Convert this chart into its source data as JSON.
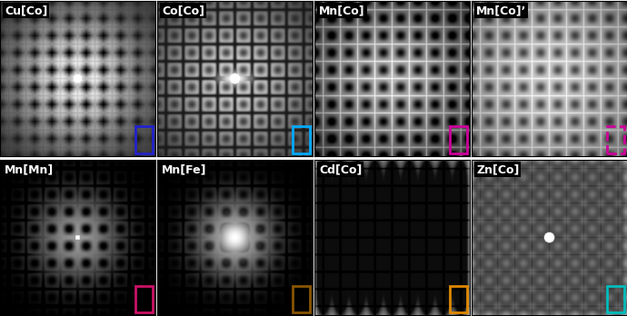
{
  "panels": [
    {
      "label": "Cu[Co]",
      "row": 0,
      "col": 0,
      "pattern": "cu_co"
    },
    {
      "label": "Co[Co]",
      "row": 0,
      "col": 1,
      "pattern": "co_co"
    },
    {
      "label": "Mn[Co]",
      "row": 0,
      "col": 2,
      "pattern": "mn_co"
    },
    {
      "label": "Mn[Co]’",
      "row": 0,
      "col": 3,
      "pattern": "mn_co2"
    },
    {
      "label": "Mn[Mn]",
      "row": 1,
      "col": 0,
      "pattern": "mn_mn"
    },
    {
      "label": "Mn[Fe]",
      "row": 1,
      "col": 1,
      "pattern": "mn_fe"
    },
    {
      "label": "Cd[Co]",
      "row": 1,
      "col": 2,
      "pattern": "cd_co"
    },
    {
      "label": "Zn[Co]",
      "row": 1,
      "col": 3,
      "pattern": "zn_co"
    }
  ],
  "corner_boxes": [
    {
      "row": 0,
      "col": 0,
      "color": "#2222cc",
      "linestyle": "solid"
    },
    {
      "row": 0,
      "col": 1,
      "color": "#00aaff",
      "linestyle": "solid"
    },
    {
      "row": 0,
      "col": 2,
      "color": "#cc0099",
      "linestyle": "solid"
    },
    {
      "row": 0,
      "col": 3,
      "color": "#cc0099",
      "linestyle": "dashed"
    },
    {
      "row": 1,
      "col": 0,
      "color": "#cc1166",
      "linestyle": "solid"
    },
    {
      "row": 1,
      "col": 1,
      "color": "#885500",
      "linestyle": "solid"
    },
    {
      "row": 1,
      "col": 2,
      "color": "#dd8800",
      "linestyle": "solid"
    },
    {
      "row": 1,
      "col": 3,
      "color": "#00bbbb",
      "linestyle": "solid"
    }
  ],
  "label_bg": "#000000",
  "label_color": "#ffffff",
  "label_fontsize": 9,
  "figsize": [
    6.9,
    3.48
  ],
  "dpi": 100
}
